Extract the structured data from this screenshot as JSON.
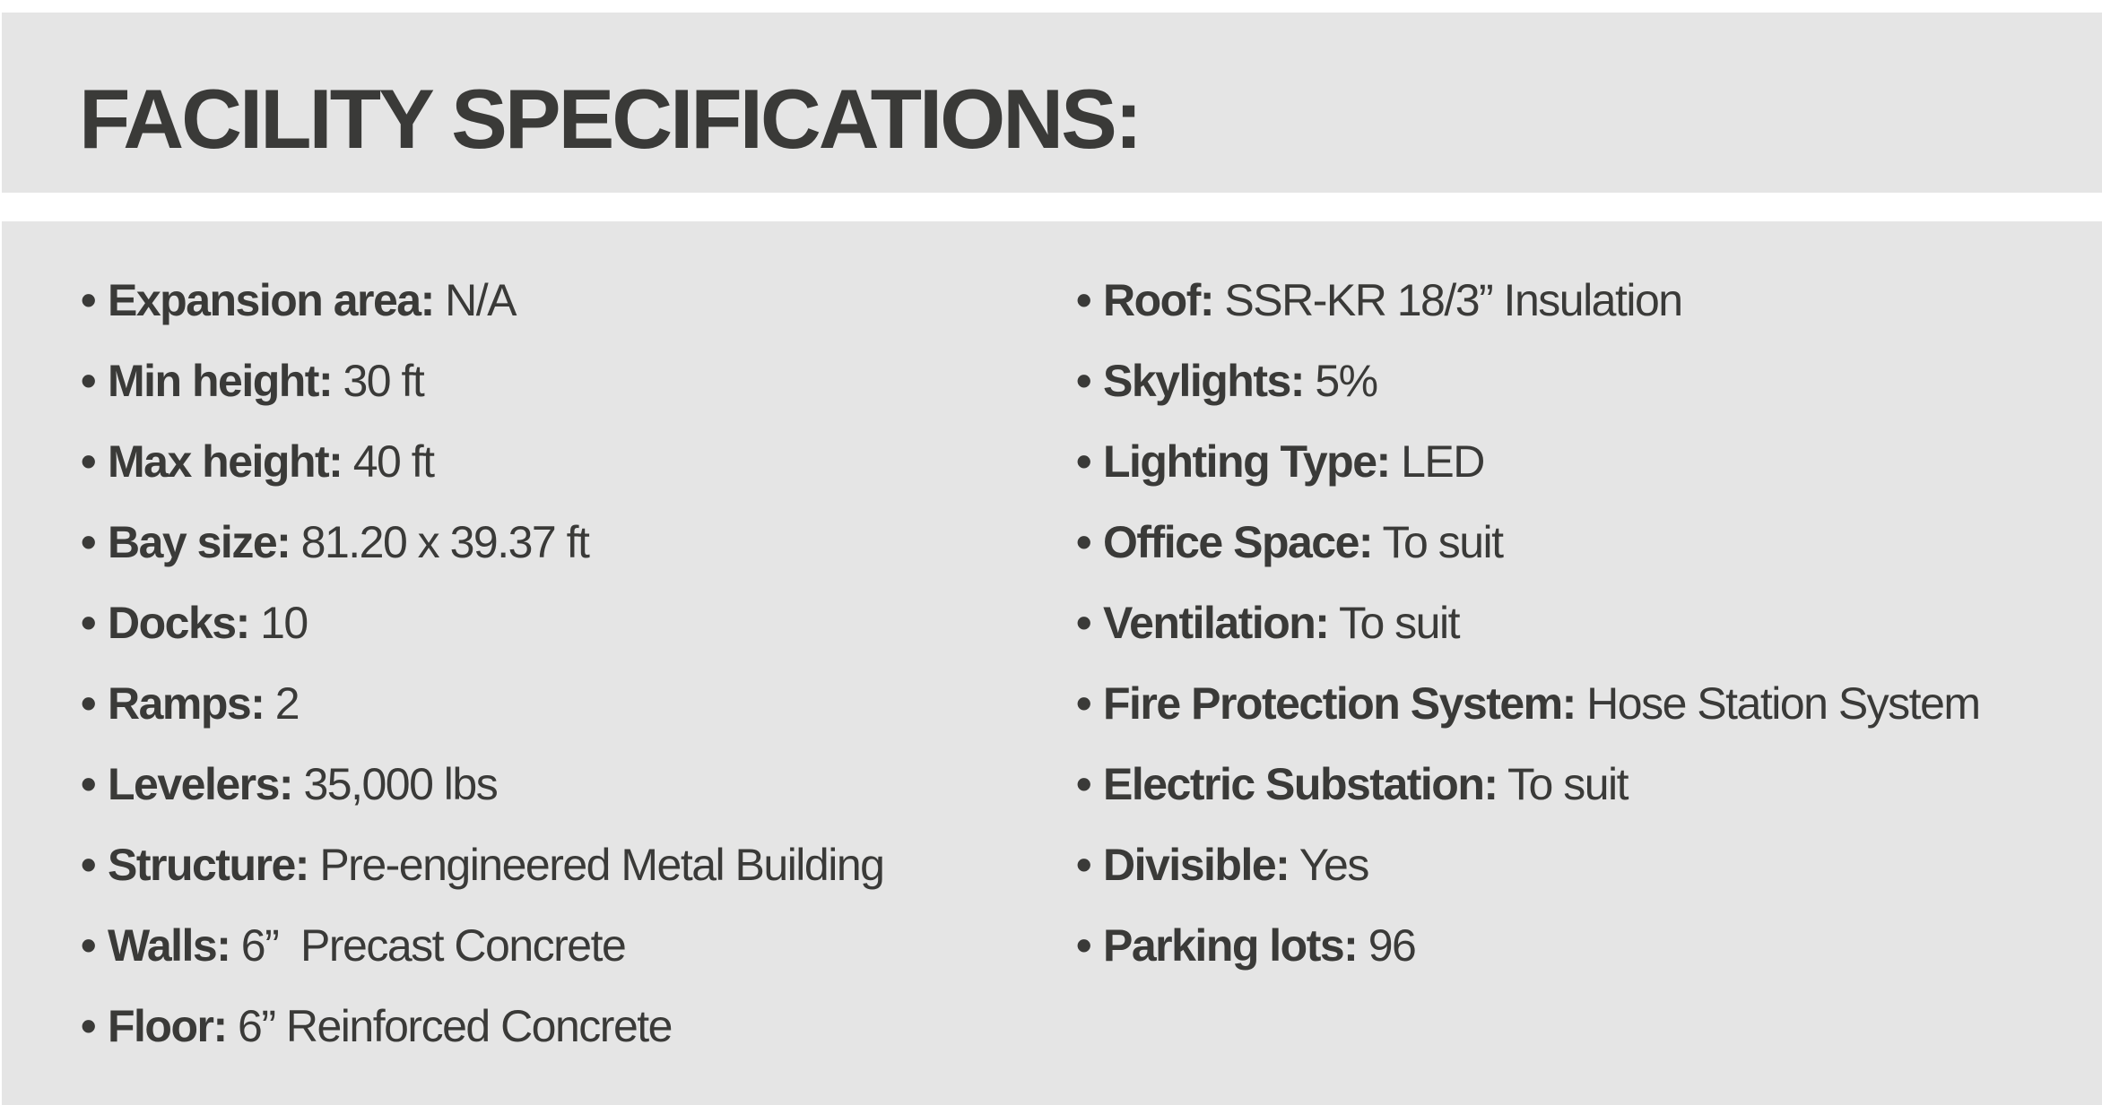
{
  "header": {
    "title": "FACILITY SPECIFICATIONS:"
  },
  "colors": {
    "panel_bg": "#e5e5e5",
    "text": "#3a3a38"
  },
  "specs_left": [
    {
      "label": "Expansion area:",
      "value": " N/A"
    },
    {
      "label": "Min height:",
      "value": " 30 ft"
    },
    {
      "label": "Max height:",
      "value": " 40 ft"
    },
    {
      "label": "Bay size:",
      "value": " 81.20 x 39.37 ft"
    },
    {
      "label": "Docks:",
      "value": " 10"
    },
    {
      "label": "Ramps:",
      "value": " 2"
    },
    {
      "label": "Levelers:",
      "value": " 35,000 lbs"
    },
    {
      "label": "Structure:",
      "value": " Pre-engineered Metal Building"
    },
    {
      "label": "Walls:",
      "value": " 6”  Precast Concrete"
    },
    {
      "label": "Floor:",
      "value": " 6” Reinforced Concrete"
    }
  ],
  "specs_right": [
    {
      "label": "Roof:",
      "value": " SSR-KR 18/3” Insulation"
    },
    {
      "label": "Skylights:",
      "value": " 5%"
    },
    {
      "label": "Lighting Type:",
      "value": " LED"
    },
    {
      "label": "Office Space:",
      "value": " To suit"
    },
    {
      "label": "Ventilation:",
      "value": " To suit"
    },
    {
      "label": "Fire Protection System:",
      "value": " Hose Station System"
    },
    {
      "label": "Electric Substation:",
      "value": " To suit"
    },
    {
      "label": "Divisible:",
      "value": " Yes"
    },
    {
      "label": "Parking lots:",
      "value": " 96"
    }
  ]
}
